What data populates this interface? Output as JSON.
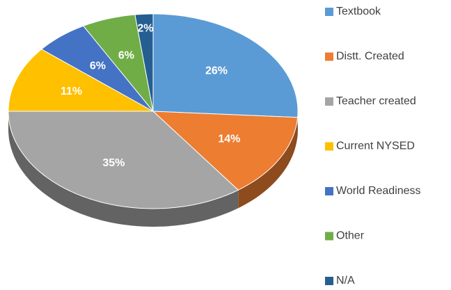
{
  "chart_data": {
    "type": "pie",
    "categories": [
      "Textbook",
      "Distt. Created",
      "Teacher created",
      "Current NYSED",
      "World Readiness",
      "Other",
      "N/A"
    ],
    "values": [
      26,
      14,
      35,
      11,
      6,
      6,
      2
    ],
    "value_labels": [
      "26%",
      "14%",
      "35%",
      "11%",
      "6%",
      "6%",
      "2%"
    ],
    "colors": [
      "#5B9BD5",
      "#ED7D31",
      "#A5A5A5",
      "#FFC000",
      "#4472C4",
      "#70AD47",
      "#255E91"
    ],
    "legend": "right"
  }
}
